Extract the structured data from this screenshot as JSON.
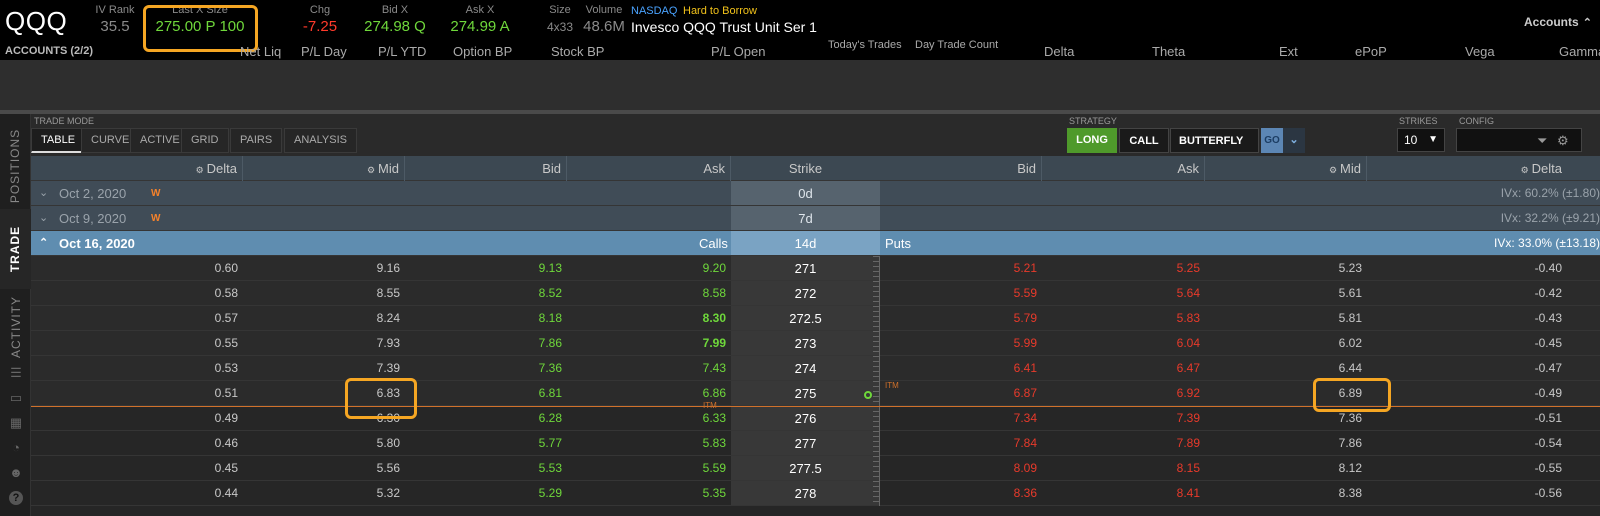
{
  "header": {
    "symbol": "QQQ",
    "iv_rank_label": "IV Rank",
    "iv_rank": "35.5",
    "last_label": "Last X Size",
    "last": "275.00 P 100",
    "chg_label": "Chg",
    "chg": "-7.25",
    "bid_label": "Bid X",
    "bid": "274.98 Q",
    "ask_label": "Ask X",
    "ask": "274.99 A",
    "size_label": "Size",
    "size": "4x33",
    "volume_label": "Volume",
    "volume": "48.6M",
    "exchange": "NASDAQ",
    "htb": "Hard to Borrow",
    "description": "Invesco QQQ Trust Unit Ser 1",
    "accounts_button": "Accounts",
    "accounts_chevron": "⌃"
  },
  "accounts_row": {
    "title": "ACCOUNTS (2/2)",
    "columns": [
      "Net Liq",
      "P/L Day",
      "P/L YTD",
      "Option BP",
      "Stock BP",
      "P/L Open",
      "Today's Trades",
      "Day Trade Count",
      "Delta",
      "Theta",
      "Ext",
      "ePoP",
      "Vega",
      "Gamma"
    ]
  },
  "side_tabs": {
    "positions": "POSITIONS",
    "trade": "TRADE",
    "activity": "ACTIVITY"
  },
  "side_icons": [
    "list-icon",
    "monitor-icon",
    "calendar-icon",
    "gauge-icon",
    "people-icon",
    "help-icon"
  ],
  "toolbar": {
    "trade_mode_label": "TRADE MODE",
    "modes": [
      "TABLE",
      "CURVE",
      "ACTIVE",
      "GRID",
      "PAIRS"
    ],
    "analysis": "ANALYSIS",
    "strategy_label": "STRATEGY",
    "strategy_side": "LONG",
    "strategy_type": "CALL",
    "strategy_name": "BUTTERFLY",
    "go": "GO",
    "strikes_label": "STRIKES",
    "strikes_value": "10",
    "config_label": "CONFIG"
  },
  "chain": {
    "headers": {
      "call_delta": "Delta",
      "call_mid": "Mid",
      "call_bid": "Bid",
      "call_ask": "Ask",
      "strike": "Strike",
      "put_bid": "Bid",
      "put_ask": "Ask",
      "put_mid": "Mid",
      "put_delta": "Delta"
    },
    "expirations": [
      {
        "date": "Oct 2, 2020",
        "flag": "W",
        "dte": "0d",
        "ivx": "IVx: 60.2% (±1.80)"
      },
      {
        "date": "Oct 9, 2020",
        "flag": "W",
        "dte": "7d",
        "ivx": "IVx: 32.2% (±9.21)"
      }
    ],
    "open_expiration": {
      "date": "Oct 16, 2020",
      "calls_label": "Calls",
      "dte": "14d",
      "puts_label": "Puts",
      "ivx": "IVx: 33.0% (±13.18)"
    },
    "rows": [
      {
        "c_delta": "0.60",
        "c_mid": "9.16",
        "c_bid": "9.13",
        "c_ask": "9.20",
        "strike": "271",
        "p_bid": "5.21",
        "p_ask": "5.25",
        "p_mid": "5.23",
        "p_delta": "-0.40"
      },
      {
        "c_delta": "0.58",
        "c_mid": "8.55",
        "c_bid": "8.52",
        "c_ask": "8.58",
        "strike": "272",
        "p_bid": "5.59",
        "p_ask": "5.64",
        "p_mid": "5.61",
        "p_delta": "-0.42"
      },
      {
        "c_delta": "0.57",
        "c_mid": "8.24",
        "c_bid": "8.18",
        "c_ask": "8.30",
        "strike": "272.5",
        "p_bid": "5.79",
        "p_ask": "5.83",
        "p_mid": "5.81",
        "p_delta": "-0.43"
      },
      {
        "c_delta": "0.55",
        "c_mid": "7.93",
        "c_bid": "7.86",
        "c_ask": "7.99",
        "strike": "273",
        "p_bid": "5.99",
        "p_ask": "6.04",
        "p_mid": "6.02",
        "p_delta": "-0.45"
      },
      {
        "c_delta": "0.53",
        "c_mid": "7.39",
        "c_bid": "7.36",
        "c_ask": "7.43",
        "strike": "274",
        "p_bid": "6.41",
        "p_ask": "6.47",
        "p_mid": "6.44",
        "p_delta": "-0.47"
      },
      {
        "c_delta": "0.51",
        "c_mid": "6.83",
        "c_bid": "6.81",
        "c_ask": "6.86",
        "strike": "275",
        "p_bid": "6.87",
        "p_ask": "6.92",
        "p_mid": "6.89",
        "p_delta": "-0.49"
      },
      {
        "c_delta": "0.49",
        "c_mid": "6.30",
        "c_bid": "6.28",
        "c_ask": "6.33",
        "strike": "276",
        "p_bid": "7.34",
        "p_ask": "7.39",
        "p_mid": "7.36",
        "p_delta": "-0.51"
      },
      {
        "c_delta": "0.46",
        "c_mid": "5.80",
        "c_bid": "5.77",
        "c_ask": "5.83",
        "strike": "277",
        "p_bid": "7.84",
        "p_ask": "7.89",
        "p_mid": "7.86",
        "p_delta": "-0.54"
      },
      {
        "c_delta": "0.45",
        "c_mid": "5.56",
        "c_bid": "5.53",
        "c_ask": "5.59",
        "strike": "277.5",
        "p_bid": "8.09",
        "p_ask": "8.15",
        "p_mid": "8.12",
        "p_delta": "-0.55"
      },
      {
        "c_delta": "0.44",
        "c_mid": "5.32",
        "c_bid": "5.29",
        "c_ask": "5.35",
        "strike": "278",
        "p_bid": "8.36",
        "p_ask": "8.41",
        "p_mid": "8.38",
        "p_delta": "-0.56"
      }
    ],
    "atm_marker": "ITM",
    "colors": {
      "bid_call": "#6fd83b",
      "bid_put": "#e83a2b",
      "highlight": "#f5a623",
      "atm_line": "#d0712b"
    }
  }
}
